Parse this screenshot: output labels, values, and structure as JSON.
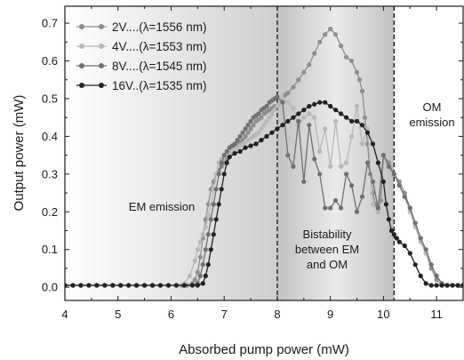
{
  "chart_data": {
    "type": "line",
    "xlabel": "Absorbed pump power (mW)",
    "ylabel": "Output power (mW)",
    "xlim": [
      4,
      11.5
    ],
    "ylim": [
      -0.035,
      0.745
    ],
    "xticks": [
      4,
      5,
      6,
      7,
      8,
      9,
      10,
      11
    ],
    "yticks": [
      0.0,
      0.1,
      0.2,
      0.3,
      0.4,
      0.5,
      0.6,
      0.7
    ],
    "xtick_labels": [
      "4",
      "5",
      "6",
      "7",
      "8",
      "9",
      "10",
      "11"
    ],
    "ytick_labels": [
      "0.0",
      "0.1",
      "0.2",
      "0.3",
      "0.4",
      "0.5",
      "0.6",
      "0.7"
    ],
    "grid": false,
    "legend_position": "top-left",
    "series": [
      {
        "name": "2V....(λ=1556 nm)",
        "color": "#8e8e8e",
        "x": [
          4.0,
          4.15,
          4.3,
          4.45,
          4.6,
          4.75,
          4.9,
          5.05,
          5.2,
          5.35,
          5.5,
          5.65,
          5.8,
          5.95,
          6.1,
          6.2,
          6.3,
          6.4,
          6.45,
          6.5,
          6.55,
          6.6,
          6.65,
          6.7,
          6.75,
          6.8,
          6.85,
          6.9,
          6.95,
          7.0,
          7.05,
          7.1,
          7.15,
          7.2,
          7.25,
          7.3,
          7.35,
          7.4,
          7.45,
          7.5,
          7.55,
          7.6,
          7.65,
          7.7,
          7.75,
          7.8,
          7.85,
          7.9,
          7.95,
          8.0,
          8.05,
          8.1,
          8.15,
          8.2,
          8.3,
          8.4,
          8.5,
          8.6,
          8.7,
          8.8,
          8.9,
          9.0,
          9.1,
          9.2,
          9.3,
          9.4,
          9.5,
          9.55,
          9.6,
          9.65,
          9.7,
          9.75,
          9.8,
          9.85,
          9.9,
          9.95,
          10.0,
          10.1,
          10.2,
          10.3,
          10.4,
          10.5,
          10.6,
          10.7,
          10.8,
          10.9,
          11.0,
          11.1,
          11.2,
          11.3,
          11.4,
          11.5
        ],
        "y": [
          0.005,
          0.005,
          0.005,
          0.005,
          0.005,
          0.005,
          0.005,
          0.005,
          0.005,
          0.005,
          0.005,
          0.005,
          0.005,
          0.005,
          0.005,
          0.005,
          0.005,
          0.01,
          0.02,
          0.04,
          0.08,
          0.13,
          0.18,
          0.22,
          0.26,
          0.28,
          0.3,
          0.31,
          0.32,
          0.33,
          0.34,
          0.35,
          0.36,
          0.37,
          0.38,
          0.385,
          0.39,
          0.4,
          0.41,
          0.42,
          0.43,
          0.44,
          0.445,
          0.45,
          0.46,
          0.465,
          0.47,
          0.475,
          0.48,
          0.48,
          0.49,
          0.5,
          0.51,
          0.515,
          0.53,
          0.55,
          0.57,
          0.59,
          0.62,
          0.65,
          0.67,
          0.685,
          0.67,
          0.64,
          0.61,
          0.6,
          0.57,
          0.55,
          0.52,
          0.45,
          0.38,
          0.3,
          0.25,
          0.22,
          0.21,
          0.23,
          0.35,
          0.33,
          0.3,
          0.28,
          0.25,
          0.21,
          0.17,
          0.13,
          0.09,
          0.05,
          0.02,
          0.005,
          0.005,
          0.005,
          0.005,
          0.005
        ]
      },
      {
        "name": "4V....(λ=1553 nm)",
        "color": "#b8b8b8",
        "x": [
          4.0,
          4.15,
          4.3,
          4.45,
          4.6,
          4.75,
          4.9,
          5.05,
          5.2,
          5.35,
          5.5,
          5.65,
          5.8,
          5.95,
          6.1,
          6.25,
          6.35,
          6.45,
          6.5,
          6.55,
          6.6,
          6.65,
          6.7,
          6.75,
          6.8,
          6.85,
          6.9,
          6.95,
          7.0,
          7.05,
          7.1,
          7.15,
          7.2,
          7.25,
          7.3,
          7.35,
          7.4,
          7.45,
          7.5,
          7.55,
          7.6,
          7.65,
          7.7,
          7.75,
          7.8,
          7.85,
          7.9,
          7.95,
          8.0,
          8.05,
          8.1,
          8.2,
          8.3,
          8.4,
          8.5,
          8.6,
          8.7,
          8.8,
          8.9,
          9.0,
          9.1,
          9.2,
          9.3,
          9.4,
          9.5,
          9.6,
          9.7,
          9.8,
          9.9,
          10.0,
          10.1,
          10.2,
          10.3,
          10.4,
          10.5,
          10.6,
          10.7,
          10.8,
          10.9,
          11.0,
          11.1,
          11.2,
          11.3,
          11.4,
          11.5
        ],
        "y": [
          0.005,
          0.005,
          0.005,
          0.005,
          0.005,
          0.005,
          0.005,
          0.005,
          0.005,
          0.005,
          0.005,
          0.005,
          0.005,
          0.005,
          0.005,
          0.01,
          0.03,
          0.07,
          0.1,
          0.12,
          0.14,
          0.16,
          0.19,
          0.22,
          0.26,
          0.3,
          0.33,
          0.34,
          0.345,
          0.35,
          0.355,
          0.36,
          0.365,
          0.37,
          0.375,
          0.38,
          0.385,
          0.39,
          0.395,
          0.4,
          0.405,
          0.41,
          0.42,
          0.43,
          0.44,
          0.45,
          0.46,
          0.47,
          0.48,
          0.49,
          0.5,
          0.49,
          0.475,
          0.43,
          0.45,
          0.46,
          0.45,
          0.36,
          0.42,
          0.32,
          0.44,
          0.32,
          0.33,
          0.4,
          0.48,
          0.38,
          0.42,
          0.22,
          0.2,
          0.35,
          0.32,
          0.3,
          0.27,
          0.24,
          0.2,
          0.16,
          0.12,
          0.09,
          0.06,
          0.03,
          0.01,
          0.005,
          0.005,
          0.005,
          0.005
        ]
      },
      {
        "name": "8V....(λ=1545 nm)",
        "color": "#707070",
        "x": [
          4.0,
          4.15,
          4.3,
          4.45,
          4.6,
          4.75,
          4.9,
          5.05,
          5.2,
          5.35,
          5.5,
          5.65,
          5.8,
          5.95,
          6.1,
          6.25,
          6.4,
          6.5,
          6.55,
          6.6,
          6.65,
          6.7,
          6.75,
          6.8,
          6.85,
          6.9,
          6.95,
          7.0,
          7.05,
          7.1,
          7.15,
          7.2,
          7.25,
          7.3,
          7.35,
          7.4,
          7.45,
          7.5,
          7.55,
          7.6,
          7.65,
          7.7,
          7.75,
          7.8,
          7.85,
          7.9,
          7.95,
          8.0,
          8.1,
          8.2,
          8.3,
          8.4,
          8.5,
          8.6,
          8.7,
          8.8,
          8.9,
          9.0,
          9.1,
          9.2,
          9.3,
          9.4,
          9.5,
          9.6,
          9.7,
          9.8,
          9.9,
          10.0,
          10.1,
          10.2,
          10.3,
          10.4,
          10.5,
          10.6,
          10.7,
          10.8,
          10.9,
          11.0,
          11.1,
          11.2,
          11.3,
          11.4,
          11.5
        ],
        "y": [
          0.005,
          0.005,
          0.005,
          0.005,
          0.005,
          0.005,
          0.005,
          0.005,
          0.005,
          0.005,
          0.005,
          0.005,
          0.005,
          0.005,
          0.005,
          0.005,
          0.005,
          0.01,
          0.03,
          0.06,
          0.1,
          0.14,
          0.18,
          0.22,
          0.26,
          0.3,
          0.33,
          0.35,
          0.36,
          0.37,
          0.375,
          0.38,
          0.39,
          0.4,
          0.41,
          0.42,
          0.43,
          0.44,
          0.45,
          0.455,
          0.46,
          0.47,
          0.475,
          0.48,
          0.49,
          0.495,
          0.5,
          0.505,
          0.49,
          0.35,
          0.32,
          0.44,
          0.28,
          0.43,
          0.34,
          0.3,
          0.21,
          0.21,
          0.23,
          0.21,
          0.3,
          0.27,
          0.2,
          0.24,
          0.33,
          0.28,
          0.21,
          0.35,
          0.32,
          0.3,
          0.27,
          0.24,
          0.21,
          0.17,
          0.13,
          0.1,
          0.06,
          0.03,
          0.01,
          0.005,
          0.005,
          0.005,
          0.005
        ]
      },
      {
        "name": "16V..(λ=1535 nm)",
        "color": "#222222",
        "x": [
          4.0,
          4.15,
          4.3,
          4.45,
          4.6,
          4.75,
          4.9,
          5.05,
          5.2,
          5.35,
          5.5,
          5.65,
          5.8,
          5.95,
          6.1,
          6.25,
          6.4,
          6.5,
          6.6,
          6.65,
          6.7,
          6.75,
          6.8,
          6.85,
          6.9,
          6.95,
          7.0,
          7.05,
          7.1,
          7.2,
          7.3,
          7.4,
          7.5,
          7.6,
          7.7,
          7.8,
          7.9,
          8.0,
          8.1,
          8.2,
          8.3,
          8.4,
          8.5,
          8.6,
          8.7,
          8.8,
          8.9,
          9.0,
          9.1,
          9.2,
          9.3,
          9.4,
          9.5,
          9.6,
          9.7,
          9.8,
          9.9,
          10.0,
          10.05,
          10.1,
          10.15,
          10.2,
          10.25,
          10.3,
          10.4,
          10.5,
          10.6,
          10.7,
          10.8,
          10.9,
          11.0,
          11.1,
          11.2,
          11.3,
          11.4,
          11.5
        ],
        "y": [
          0.005,
          0.005,
          0.005,
          0.005,
          0.005,
          0.005,
          0.005,
          0.005,
          0.005,
          0.005,
          0.005,
          0.005,
          0.005,
          0.005,
          0.005,
          0.005,
          0.005,
          0.005,
          0.01,
          0.03,
          0.06,
          0.1,
          0.14,
          0.18,
          0.22,
          0.26,
          0.3,
          0.33,
          0.345,
          0.355,
          0.36,
          0.37,
          0.375,
          0.38,
          0.39,
          0.4,
          0.41,
          0.42,
          0.43,
          0.44,
          0.45,
          0.46,
          0.47,
          0.48,
          0.485,
          0.49,
          0.49,
          0.48,
          0.47,
          0.46,
          0.45,
          0.44,
          0.44,
          0.43,
          0.41,
          0.38,
          0.33,
          0.28,
          0.22,
          0.18,
          0.15,
          0.14,
          0.13,
          0.12,
          0.11,
          0.09,
          0.06,
          0.03,
          0.01,
          0.005,
          0.005,
          0.005,
          0.005,
          0.005,
          0.005,
          0.005
        ]
      }
    ],
    "regions": [
      {
        "name": "em",
        "x": [
          4,
          8
        ],
        "label": "EM emission"
      },
      {
        "name": "bistable",
        "x": [
          8,
          10.2
        ],
        "label": "Bistability\nbetween EM\nand OM"
      },
      {
        "name": "om",
        "x": [
          10.2,
          11.5
        ],
        "label": "OM\nemission"
      }
    ],
    "vlines": [
      8,
      10.2
    ]
  }
}
